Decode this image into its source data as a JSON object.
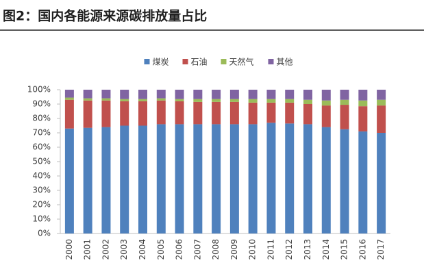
{
  "chart_data": {
    "type": "bar",
    "stacked": true,
    "title": "图2：国内各能源来源碳排放量占比",
    "categories": [
      "2000",
      "2001",
      "2002",
      "2003",
      "2004",
      "2005",
      "2006",
      "2007",
      "2008",
      "2009",
      "2010",
      "2011",
      "2012",
      "2013",
      "2014",
      "2015",
      "2016",
      "2017"
    ],
    "series": [
      {
        "name": "煤炭",
        "color": "#4f81bd",
        "values": [
          73,
          73.5,
          74,
          75,
          75,
          76,
          76,
          76,
          76,
          76,
          76,
          77,
          76.5,
          76,
          74,
          72.5,
          71,
          70
        ]
      },
      {
        "name": "石油",
        "color": "#c0504d",
        "values": [
          20,
          19,
          18.5,
          17,
          17,
          16.5,
          16,
          15.5,
          15.5,
          15.5,
          15,
          14,
          14.5,
          14,
          15,
          17,
          17.5,
          19
        ]
      },
      {
        "name": "天然气",
        "color": "#9bbb59",
        "values": [
          1.5,
          1.5,
          1.5,
          1.5,
          1.5,
          1.5,
          1.5,
          2,
          2,
          2,
          2.5,
          2.5,
          2.5,
          3,
          3.5,
          3.5,
          4,
          4
        ]
      },
      {
        "name": "其他",
        "color": "#8064a2",
        "values": [
          5.5,
          6,
          6,
          6.5,
          6.5,
          6,
          6.5,
          6.5,
          6.5,
          6.5,
          6.5,
          6.5,
          6.5,
          7,
          7.5,
          7,
          7.5,
          7
        ]
      }
    ],
    "ylim": [
      0,
      100
    ],
    "yticks": [
      {
        "value": 0,
        "label": "0%"
      },
      {
        "value": 10,
        "label": "10%"
      },
      {
        "value": 20,
        "label": "20%"
      },
      {
        "value": 30,
        "label": "30%"
      },
      {
        "value": 40,
        "label": "40%"
      },
      {
        "value": 50,
        "label": "50%"
      },
      {
        "value": 60,
        "label": "60%"
      },
      {
        "value": 70,
        "label": "70%"
      },
      {
        "value": 80,
        "label": "80%"
      },
      {
        "value": 90,
        "label": "90%"
      },
      {
        "value": 100,
        "label": "100%"
      }
    ],
    "grid": false,
    "legend": "top"
  }
}
